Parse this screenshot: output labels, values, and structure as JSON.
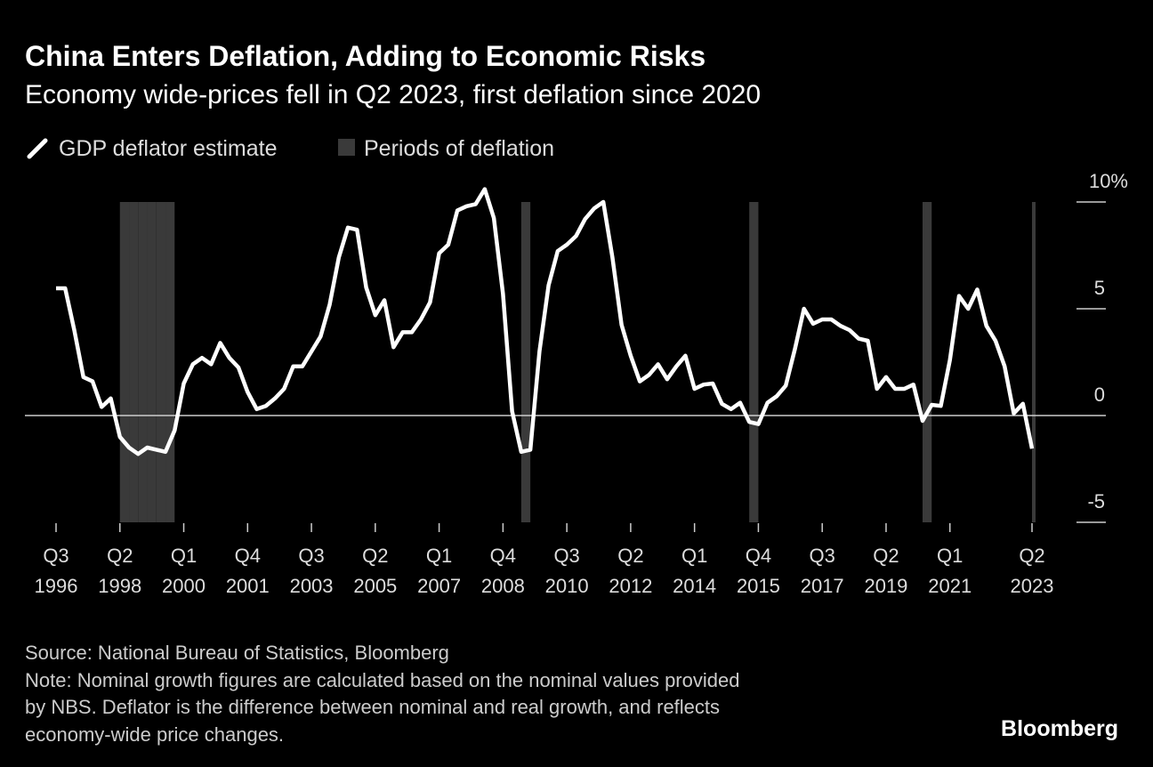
{
  "chart_data": {
    "type": "line",
    "title": "China Enters Deflation, Adding to Economic Risks",
    "subtitle": "Economy wide-prices fell in Q2 2023, first deflation since 2020",
    "categories": [
      "Q3 1996",
      null,
      null,
      null,
      null,
      null,
      null,
      "Q2 1998",
      null,
      null,
      null,
      null,
      null,
      null,
      "Q1 2000",
      null,
      null,
      null,
      null,
      null,
      null,
      "Q4 2001",
      null,
      null,
      null,
      null,
      null,
      null,
      "Q3 2003",
      null,
      null,
      null,
      null,
      null,
      null,
      "Q2 2005",
      null,
      null,
      null,
      null,
      null,
      null,
      "Q1 2007",
      null,
      null,
      null,
      null,
      null,
      null,
      "Q4 2008",
      null,
      null,
      null,
      null,
      null,
      null,
      "Q3 2010",
      null,
      null,
      null,
      null,
      null,
      null,
      "Q2 2012",
      null,
      null,
      null,
      null,
      null,
      null,
      "Q1 2014",
      null,
      null,
      null,
      null,
      null,
      null,
      "Q4 2015",
      null,
      null,
      null,
      null,
      null,
      null,
      "Q3 2017",
      null,
      null,
      null,
      null,
      null,
      null,
      "Q2 2019",
      null,
      null,
      null,
      null,
      null,
      null,
      "Q1 2021",
      null,
      null,
      null,
      null,
      null,
      null,
      null,
      null,
      "Q2 2023"
    ],
    "series": [
      {
        "name": "GDP deflator estimate",
        "color": "#ffffff",
        "values": [
          5.96,
          5.96,
          4.0,
          1.8,
          1.6,
          0.4,
          0.8,
          -1.0,
          -1.5,
          -1.8,
          -1.5,
          -1.6,
          -1.7,
          -0.7,
          1.5,
          2.4,
          2.7,
          2.4,
          3.4,
          2.7,
          2.25,
          1.1,
          0.3,
          0.45,
          0.8,
          1.25,
          2.3,
          2.3,
          3.0,
          3.7,
          5.2,
          7.4,
          8.8,
          8.7,
          6.0,
          4.7,
          5.4,
          3.2,
          3.9,
          3.9,
          4.5,
          5.3,
          7.6,
          8.0,
          9.6,
          9.8,
          9.9,
          10.6,
          9.25,
          5.7,
          0.2,
          -1.7,
          -1.6,
          3.0,
          6.1,
          7.7,
          8.0,
          8.4,
          9.2,
          9.7,
          10.0,
          7.4,
          4.25,
          2.8,
          1.6,
          1.9,
          2.4,
          1.7,
          2.3,
          2.8,
          1.25,
          1.45,
          1.5,
          0.55,
          0.3,
          0.6,
          -0.3,
          -0.4,
          0.6,
          0.9,
          1.4,
          3.1,
          5.0,
          4.3,
          4.5,
          4.5,
          4.2,
          4.0,
          3.6,
          3.5,
          1.25,
          1.8,
          1.25,
          1.25,
          1.45,
          -0.25,
          0.5,
          0.45,
          2.6,
          5.6,
          5.0,
          5.9,
          4.2,
          3.5,
          2.3,
          0.1,
          0.55,
          -1.55
        ]
      },
      {
        "name": "Periods of deflation",
        "color": "#3a3a3a",
        "values": [
          false,
          false,
          false,
          false,
          false,
          false,
          false,
          true,
          true,
          true,
          true,
          true,
          true,
          false,
          false,
          false,
          false,
          false,
          false,
          false,
          false,
          false,
          false,
          false,
          false,
          false,
          false,
          false,
          false,
          false,
          false,
          false,
          false,
          false,
          false,
          false,
          false,
          false,
          false,
          false,
          false,
          false,
          false,
          false,
          false,
          false,
          false,
          false,
          false,
          false,
          false,
          true,
          false,
          false,
          false,
          false,
          false,
          false,
          false,
          false,
          false,
          false,
          false,
          false,
          false,
          false,
          false,
          false,
          false,
          false,
          false,
          false,
          false,
          false,
          false,
          false,
          true,
          false,
          false,
          false,
          false,
          false,
          false,
          false,
          false,
          false,
          false,
          false,
          false,
          false,
          false,
          false,
          false,
          false,
          false,
          true,
          false,
          false,
          false,
          false,
          false,
          false,
          false,
          false,
          false,
          false,
          false,
          true
        ]
      }
    ],
    "ylim": [
      -5,
      11
    ],
    "yticks": [
      -5,
      0,
      5,
      {
        "value": 10,
        "label": "10%"
      }
    ],
    "source": "Source: National Bureau of Statistics, Bloomberg",
    "note": [
      "Note: Nominal growth figures are calculated based on the nominal values provided",
      "by NBS. Deflator is the difference between nominal and real growth, and reflects",
      "economy-wide price changes."
    ],
    "brand": "Bloomberg"
  }
}
